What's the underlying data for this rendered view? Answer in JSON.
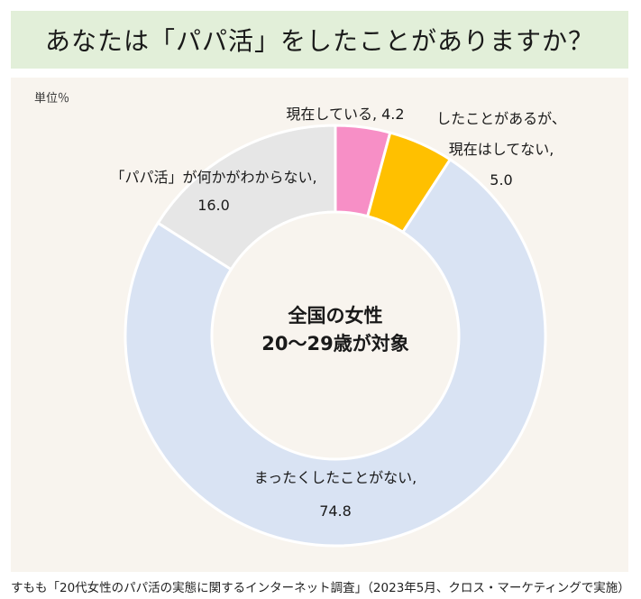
{
  "title": "あなたは「パパ活」をしたことがありますか？",
  "unit": "単位％",
  "center_text": [
    "全国の女性",
    "20〜29歳が対象"
  ],
  "source": "すもも「20代女性のパパ活の実態に関するインターネット調査」（2023年5月、クロス・マーケティングで実施）",
  "colors": {
    "title_bg": "#e2efd9",
    "panel_bg": "#f8f4ee"
  },
  "chart_data": {
    "type": "pie",
    "donut": true,
    "unit": "%",
    "slices": [
      {
        "label_lines": [
          "現在している, 4.2"
        ],
        "value": 4.2,
        "color": "#f78fc6"
      },
      {
        "label_lines": [
          "したことがあるが、",
          "現在はしてない,",
          "5.0"
        ],
        "value": 5.0,
        "color": "#ffc000"
      },
      {
        "label_lines": [
          "まったくしたことがない,",
          "74.8"
        ],
        "value": 74.8,
        "color": "#d9e3f3"
      },
      {
        "label_lines": [
          "「パパ活」が何かがわからない,",
          "16.0"
        ],
        "value": 16.0,
        "color": "#e6e6e6"
      }
    ]
  }
}
